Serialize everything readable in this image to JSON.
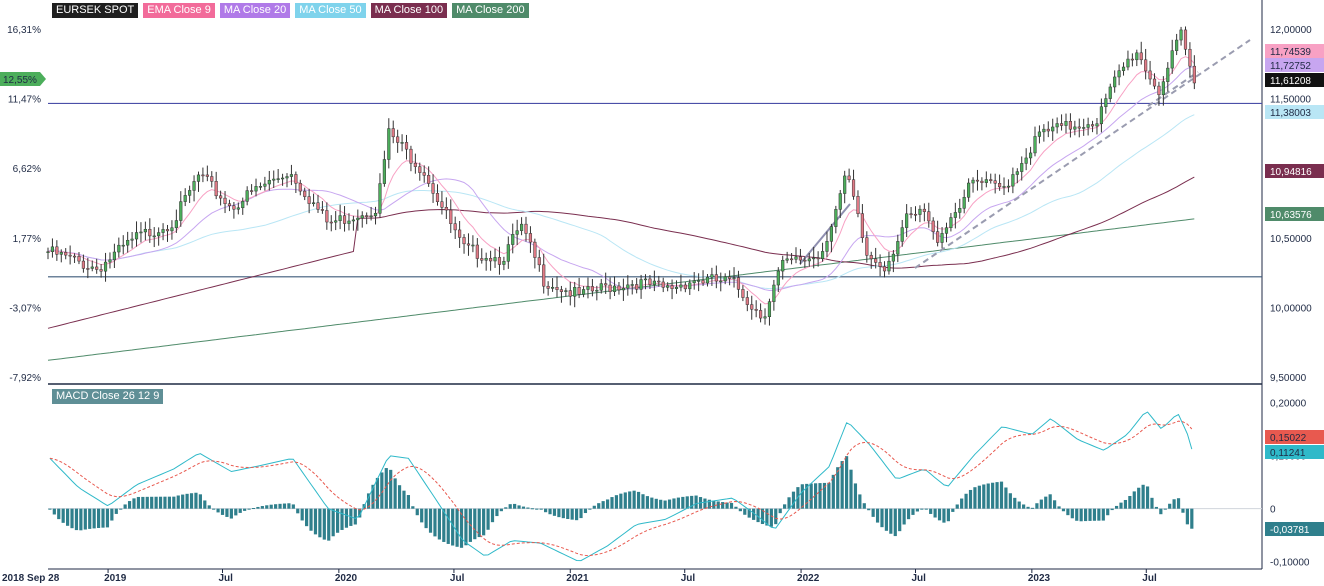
{
  "chart_data": [
    {
      "type": "candlestick",
      "title": "EURSEK SPOT",
      "x_axis": {
        "tick_labels": [
          "2018 Sep 28",
          "2019",
          "Jul",
          "2020",
          "Jul",
          "2021",
          "Jul",
          "2022",
          "Jul",
          "2023",
          "Jul"
        ],
        "tick_dates": [
          "2018-09-28",
          "2019-01-01",
          "2019-07-01",
          "2020-01-01",
          "2020-07-01",
          "2021-01-01",
          "2021-07-01",
          "2022-01-01",
          "2022-07-01",
          "2023-01-01",
          "2023-07-01"
        ],
        "range": [
          "2018-09-28",
          "2023-12-31"
        ]
      },
      "y_axis_right": {
        "range": [
          9.45,
          12.05
        ],
        "tick_labels": [
          "12,00000",
          "11,50000",
          "11,00000",
          "10,50000",
          "10,00000",
          "9,50000"
        ],
        "tick_values": [
          12.0,
          11.5,
          11.0,
          10.5,
          10.0,
          9.5
        ]
      },
      "y_axis_left": {
        "tick_labels": [
          "16,31%",
          "11,47%",
          "6,62%",
          "1,77%",
          "-3,07%",
          "-7,92%"
        ],
        "tick_values": [
          16.31,
          11.47,
          6.62,
          1.77,
          -3.07,
          -7.92
        ]
      },
      "legend": [
        {
          "name": "EURSEK SPOT",
          "color": "#1f1f1f"
        },
        {
          "name": "EMA Close 9",
          "color": "#f26b9a"
        },
        {
          "name": "MA Close 20",
          "color": "#b07ae8"
        },
        {
          "name": "MA Close 50",
          "color": "#7fd3ec"
        },
        {
          "name": "MA Close 100",
          "color": "#7a2e4f"
        },
        {
          "name": "MA Close 200",
          "color": "#4f8b6a"
        }
      ],
      "horizontal_lines": [
        11.465,
        10.22
      ],
      "price_anchors": [
        [
          "2018-09-28",
          10.4
        ],
        [
          "2018-12-15",
          10.28
        ],
        [
          "2019-02-15",
          10.5
        ],
        [
          "2019-04-15",
          10.62
        ],
        [
          "2019-05-25",
          10.95
        ],
        [
          "2019-07-15",
          10.72
        ],
        [
          "2019-08-25",
          10.85
        ],
        [
          "2019-10-15",
          10.98
        ],
        [
          "2019-12-15",
          10.6
        ],
        [
          "2020-03-01",
          10.72
        ],
        [
          "2020-03-20",
          11.25
        ],
        [
          "2020-05-15",
          10.98
        ],
        [
          "2020-07-15",
          10.42
        ],
        [
          "2020-09-15",
          10.35
        ],
        [
          "2020-10-15",
          10.58
        ],
        [
          "2020-11-20",
          10.2
        ],
        [
          "2021-01-15",
          10.08
        ],
        [
          "2021-03-01",
          10.15
        ],
        [
          "2021-04-15",
          10.18
        ],
        [
          "2021-06-01",
          10.13
        ],
        [
          "2021-07-15",
          10.2
        ],
        [
          "2021-09-15",
          10.18
        ],
        [
          "2021-11-01",
          9.93
        ],
        [
          "2021-12-01",
          10.3
        ],
        [
          "2022-02-01",
          10.38
        ],
        [
          "2022-03-15",
          10.95
        ],
        [
          "2022-04-15",
          10.37
        ],
        [
          "2022-05-15",
          10.3
        ],
        [
          "2022-06-15",
          10.62
        ],
        [
          "2022-07-15",
          10.68
        ],
        [
          "2022-08-01",
          10.48
        ],
        [
          "2022-10-01",
          10.9
        ],
        [
          "2022-11-15",
          10.85
        ],
        [
          "2023-01-15",
          11.25
        ],
        [
          "2023-03-01",
          11.3
        ],
        [
          "2023-04-15",
          11.35
        ],
        [
          "2023-05-15",
          11.65
        ],
        [
          "2023-06-15",
          11.85
        ],
        [
          "2023-07-20",
          11.55
        ],
        [
          "2023-08-25",
          11.95
        ],
        [
          "2023-09-15",
          11.61
        ]
      ],
      "series": [
        {
          "name": "EMA Close 9",
          "last_value": 11.74539,
          "label": "11,74539",
          "color": "#f8a1c4"
        },
        {
          "name": "MA Close 20",
          "last_value": 11.72752,
          "label": "11,72752",
          "color": "#c7a6f0"
        },
        {
          "name": "EURSEK SPOT",
          "last_value": 11.61208,
          "label": "11,61208",
          "color": "#111111"
        },
        {
          "name": "MA Close 50",
          "last_value": 11.38003,
          "label": "11,38003",
          "color": "#b9e6f5"
        },
        {
          "name": "MA Close 100",
          "last_value": 10.94816,
          "label": "10,94816",
          "color": "#7a2e4f"
        },
        {
          "name": "MA Close 200",
          "last_value": 10.63576,
          "label": "10,63576",
          "color": "#4f8b6a"
        }
      ],
      "left_badge": {
        "label": "12,55%",
        "value": 11.62,
        "color": "#4cae5b"
      }
    },
    {
      "type": "line",
      "title": "MACD Close 26 12 9",
      "y_axis_right": {
        "range": [
          -0.11,
          0.22
        ],
        "tick_labels": [
          "0,20000",
          "0,10000",
          "0",
          "-0,10000"
        ],
        "tick_values": [
          0.2,
          0.1,
          0.0,
          -0.1
        ]
      },
      "macd_anchors": [
        [
          "2018-10-01",
          0.095
        ],
        [
          "2018-11-15",
          0.04
        ],
        [
          "2019-01-01",
          0.005
        ],
        [
          "2019-02-15",
          0.045
        ],
        [
          "2019-04-15",
          0.075
        ],
        [
          "2019-05-25",
          0.105
        ],
        [
          "2019-07-15",
          0.07
        ],
        [
          "2019-08-25",
          0.08
        ],
        [
          "2019-10-20",
          0.095
        ],
        [
          "2019-12-15",
          0.0
        ],
        [
          "2020-01-31",
          -0.02
        ],
        [
          "2020-03-20",
          0.1
        ],
        [
          "2020-04-20",
          0.095
        ],
        [
          "2020-06-01",
          0.02
        ],
        [
          "2020-07-15",
          -0.06
        ],
        [
          "2020-08-20",
          -0.09
        ],
        [
          "2020-10-01",
          -0.06
        ],
        [
          "2020-11-15",
          -0.065
        ],
        [
          "2021-01-15",
          -0.1
        ],
        [
          "2021-03-01",
          -0.07
        ],
        [
          "2021-04-15",
          -0.03
        ],
        [
          "2021-06-01",
          -0.02
        ],
        [
          "2021-07-20",
          0.01
        ],
        [
          "2021-09-15",
          0.02
        ],
        [
          "2021-10-20",
          -0.01
        ],
        [
          "2021-11-20",
          -0.04
        ],
        [
          "2022-01-01",
          0.03
        ],
        [
          "2022-02-15",
          0.08
        ],
        [
          "2022-03-15",
          0.165
        ],
        [
          "2022-04-20",
          0.12
        ],
        [
          "2022-06-01",
          0.055
        ],
        [
          "2022-07-15",
          0.075
        ],
        [
          "2022-08-20",
          0.04
        ],
        [
          "2022-10-01",
          0.1
        ],
        [
          "2022-11-15",
          0.155
        ],
        [
          "2023-01-01",
          0.14
        ],
        [
          "2023-01-31",
          0.17
        ],
        [
          "2023-03-15",
          0.13
        ],
        [
          "2023-04-25",
          0.11
        ],
        [
          "2023-06-01",
          0.14
        ],
        [
          "2023-07-01",
          0.185
        ],
        [
          "2023-07-25",
          0.15
        ],
        [
          "2023-08-20",
          0.18
        ],
        [
          "2023-09-15",
          0.112
        ]
      ],
      "series": [
        {
          "name": "MACD",
          "last_value": 0.11241,
          "label": "0,11241",
          "color": "#2fb9c9"
        },
        {
          "name": "Signal",
          "last_value": 0.15022,
          "label": "0,15022",
          "color": "#e8594f"
        },
        {
          "name": "Histogram",
          "last_value": -0.03781,
          "label": "-0,03781",
          "color": "#2f7f8c"
        }
      ]
    }
  ]
}
